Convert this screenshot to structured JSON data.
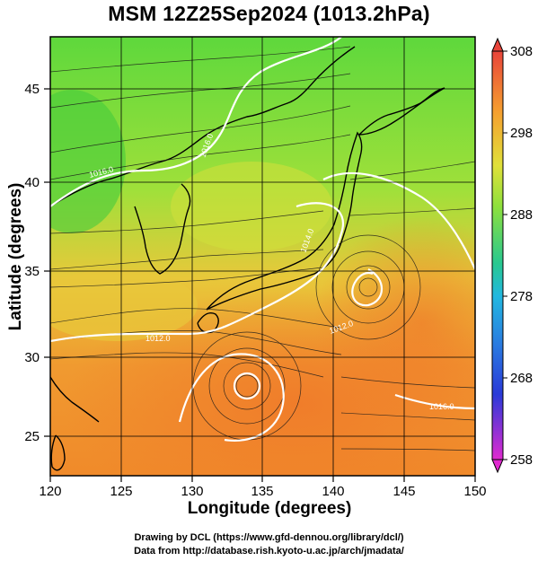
{
  "title": "MSM 12Z25Sep2024 (1013.2hPa)",
  "x_axis": {
    "label": "Longitude (degrees)",
    "ticks": [
      "120",
      "125",
      "130",
      "135",
      "140",
      "145",
      "150"
    ]
  },
  "y_axis": {
    "label": "Latitude  (degrees)",
    "ticks": [
      "25",
      "30",
      "35",
      "40",
      "45"
    ]
  },
  "colorbar": {
    "ticks": [
      "308",
      "298",
      "288",
      "278",
      "268",
      "258"
    ],
    "colors": [
      "#e8443a",
      "#f07a2a",
      "#f5a030",
      "#f0c83a",
      "#d8e83a",
      "#8ee03c",
      "#3ccc3c",
      "#28c890",
      "#22b8e0",
      "#2a7ae0",
      "#2a3ad8",
      "#8a2ad0",
      "#e02ad0"
    ]
  },
  "isobar_labels": [
    "1016.0",
    "1016.0",
    "1014.0",
    "1012.0",
    "1012.0",
    "1016.0"
  ],
  "colors": {
    "warm": "#f08a2a",
    "mid": "#e8b83a",
    "cool": "#5ed83c",
    "land": "#000000",
    "isobar": "#ffffff"
  },
  "credits": {
    "line1": "Drawing by DCL (https://www.gfd-dennou.org/library/dcl/)",
    "line2": "Data from http://database.rish.kyoto-u.ac.jp/arch/jmadata/"
  }
}
